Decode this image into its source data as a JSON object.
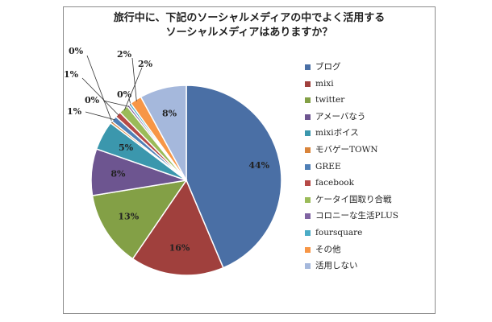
{
  "chart_data": {
    "type": "pie",
    "title_lines": [
      "旅行中に、下記のソーシャルメディアの中でよく活用する",
      "ソーシャルメディアはありますか？"
    ],
    "slices": [
      {
        "name": "ブログ",
        "value": 44,
        "label": "44%",
        "color": "#4a6fa5"
      },
      {
        "name": "mixi",
        "value": 16,
        "label": "16%",
        "color": "#a0403d"
      },
      {
        "name": "twitter",
        "value": 13,
        "label": "13%",
        "color": "#83a046"
      },
      {
        "name": "アメーバなう",
        "value": 8,
        "label": "8%",
        "color": "#6d5590"
      },
      {
        "name": "mixiボイス",
        "value": 5,
        "label": "5%",
        "color": "#3b97ad"
      },
      {
        "name": "モバゲーTOWN",
        "value": 0.4,
        "label": "0%",
        "color": "#d9843a"
      },
      {
        "name": "GREE",
        "value": 1,
        "label": "1%",
        "color": "#4f7fb6"
      },
      {
        "name": "facebook",
        "value": 1,
        "label": "1%",
        "color": "#b64a47"
      },
      {
        "name": "ケータイ国取り合戦",
        "value": 1.6,
        "label": "2%",
        "color": "#9bbb59"
      },
      {
        "name": "コロニーな生活PLUS",
        "value": 0.4,
        "label": "0%",
        "color": "#8064a2"
      },
      {
        "name": "foursquare",
        "value": 0.4,
        "label": "0%",
        "color": "#4bacc6"
      },
      {
        "name": "その他",
        "value": 2,
        "label": "2%",
        "color": "#f79646"
      },
      {
        "name": "活用しない",
        "value": 8,
        "label": "8%",
        "color": "#a5b8dc"
      }
    ],
    "legend_position": "right"
  }
}
